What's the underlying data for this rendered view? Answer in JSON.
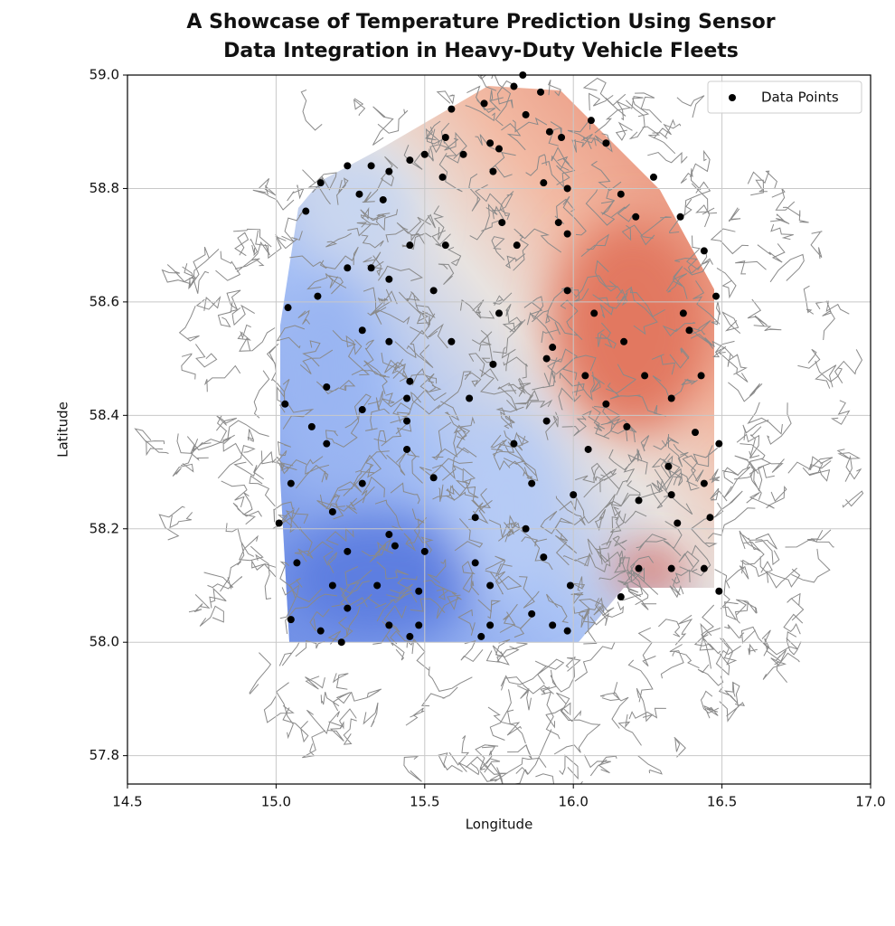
{
  "chart_data": {
    "type": "scatter",
    "title": "A Showcase of Temperature Prediction Using Sensor Data Integration in Heavy-Duty Vehicle Fleets",
    "x_label": "Longitude",
    "y_label": "Latitude",
    "legend_position": "upper right",
    "grid": true,
    "xlim": [
      14.5,
      17.0
    ],
    "ylim": [
      57.75,
      59.0
    ],
    "xticks": [
      14.5,
      {
        "value": 15,
        "label": "15.0"
      },
      15.5,
      {
        "value": 16,
        "label": "16.0"
      },
      16.5,
      {
        "value": 17,
        "label": "17.0"
      }
    ],
    "yticks": [
      57.8,
      {
        "value": 58,
        "label": "58.0"
      },
      58.2,
      58.4,
      58.6,
      58.8,
      {
        "value": 59,
        "label": "59.0"
      }
    ],
    "series": [
      {
        "name": "Data Points",
        "color": "#000000",
        "x": [
          15.83,
          15.8,
          15.89,
          15.7,
          15.59,
          16.06,
          15.84,
          15.92,
          15.96,
          15.57,
          15.72,
          15.75,
          16.11,
          15.5,
          15.45,
          15.63,
          15.24,
          15.32,
          15.38,
          15.56,
          15.73,
          15.9,
          16.27,
          15.98,
          16.16,
          15.15,
          15.28,
          15.1,
          15.36,
          16.21,
          16.36,
          15.76,
          15.95,
          15.45,
          15.57,
          15.81,
          15.98,
          16.44,
          15.24,
          15.32,
          15.38,
          15.53,
          15.14,
          15.04,
          15.75,
          15.98,
          16.07,
          16.37,
          16.48,
          15.29,
          15.38,
          15.59,
          15.93,
          16.17,
          16.39,
          15.73,
          15.91,
          15.17,
          15.45,
          16.04,
          16.24,
          16.43,
          15.03,
          15.29,
          15.44,
          15.65,
          16.11,
          16.33,
          15.12,
          15.44,
          15.91,
          16.18,
          16.41,
          15.17,
          15.44,
          15.8,
          16.05,
          16.32,
          16.49,
          15.05,
          15.29,
          15.53,
          15.86,
          16.0,
          16.22,
          16.33,
          16.44,
          15.01,
          15.19,
          15.38,
          15.67,
          15.84,
          16.35,
          16.46,
          15.07,
          15.24,
          15.4,
          15.5,
          15.67,
          15.9,
          16.22,
          16.33,
          16.44,
          15.19,
          15.34,
          15.48,
          15.72,
          15.99,
          16.16,
          16.49,
          15.05,
          15.24,
          15.38,
          15.48,
          15.72,
          15.86,
          15.93,
          15.15,
          15.22,
          15.45,
          15.69,
          15.98
        ],
        "values": [
          59.0,
          58.98,
          58.97,
          58.95,
          58.94,
          58.92,
          58.93,
          58.9,
          58.89,
          58.89,
          58.88,
          58.87,
          58.88,
          58.86,
          58.85,
          58.86,
          58.84,
          58.84,
          58.83,
          58.82,
          58.83,
          58.81,
          58.82,
          58.8,
          58.79,
          58.81,
          58.79,
          58.76,
          58.78,
          58.75,
          58.75,
          58.74,
          58.74,
          58.7,
          58.7,
          58.7,
          58.72,
          58.69,
          58.66,
          58.66,
          58.64,
          58.62,
          58.61,
          58.59,
          58.58,
          58.62,
          58.58,
          58.58,
          58.61,
          58.55,
          58.53,
          58.53,
          58.52,
          58.53,
          58.55,
          58.49,
          58.5,
          58.45,
          58.46,
          58.47,
          58.47,
          58.47,
          58.42,
          58.41,
          58.43,
          58.43,
          58.42,
          58.43,
          58.38,
          58.39,
          58.39,
          58.38,
          58.37,
          58.35,
          58.34,
          58.35,
          58.34,
          58.31,
          58.35,
          58.28,
          58.28,
          58.29,
          58.28,
          58.26,
          58.25,
          58.26,
          58.28,
          58.21,
          58.23,
          58.19,
          58.22,
          58.2,
          58.21,
          58.22,
          58.14,
          58.16,
          58.17,
          58.16,
          58.14,
          58.15,
          58.13,
          58.13,
          58.13,
          58.1,
          58.1,
          58.09,
          58.1,
          58.1,
          58.08,
          58.09,
          58.04,
          58.06,
          58.03,
          58.03,
          58.03,
          58.05,
          58.03,
          58.02,
          58.0,
          58.01,
          58.01,
          58.02
        ]
      }
    ]
  }
}
